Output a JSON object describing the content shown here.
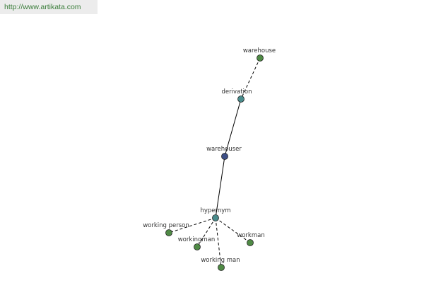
{
  "header": {
    "url": "http://www.artikata.com"
  },
  "nodes": [
    {
      "label": "warehouse"
    },
    {
      "label": "derivation"
    },
    {
      "label": "warehouser"
    },
    {
      "label": "hypernym"
    },
    {
      "label": "working person"
    },
    {
      "label": "workingman"
    },
    {
      "label": "working man"
    },
    {
      "label": "workman"
    }
  ]
}
